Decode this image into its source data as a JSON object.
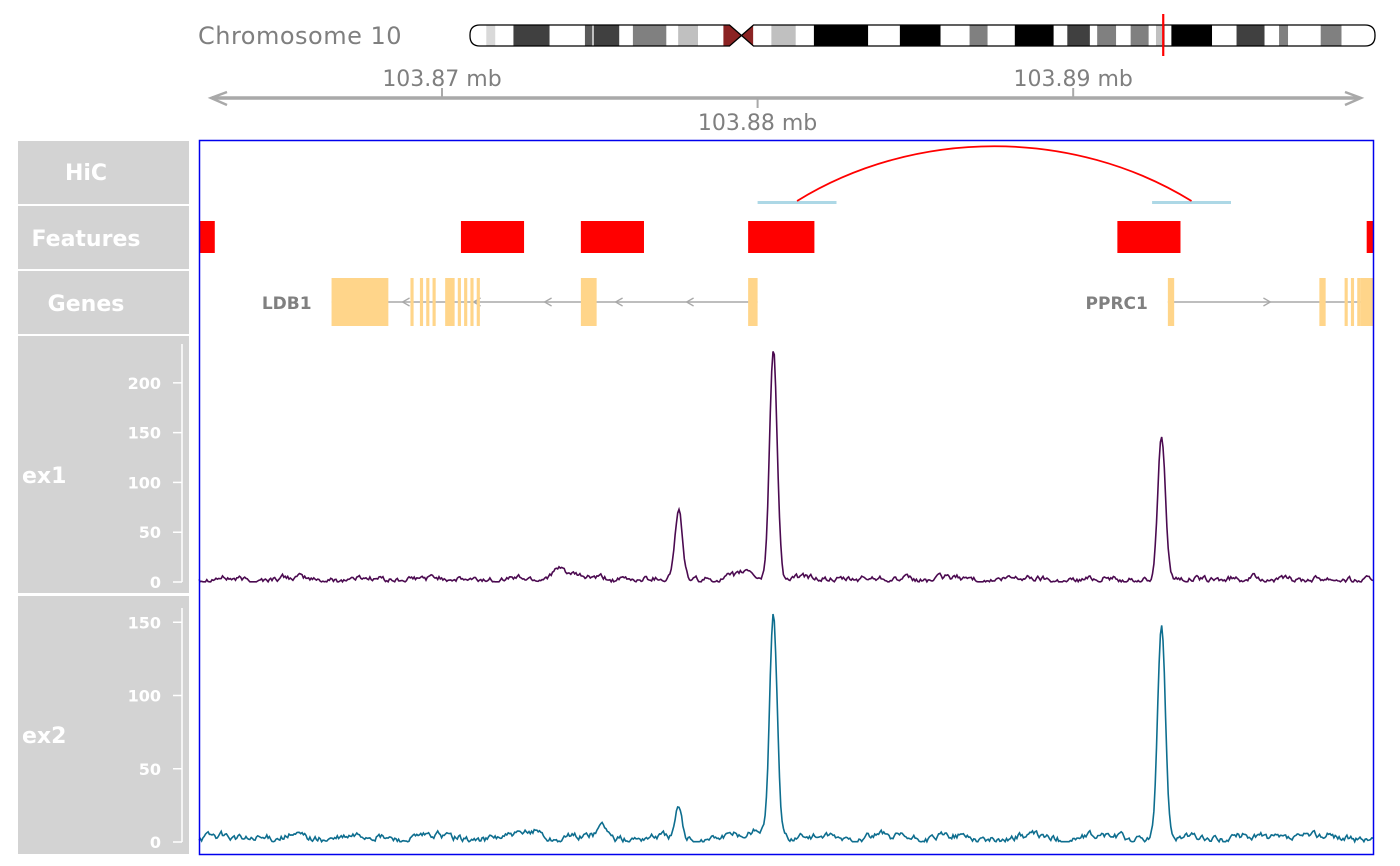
{
  "ideogram": {
    "label": "Chromosome 10",
    "bands": [
      {
        "s": 0.0,
        "e": 0.018,
        "c": "#ffffff"
      },
      {
        "s": 0.018,
        "e": 0.028,
        "c": "#d9d9d9"
      },
      {
        "s": 0.028,
        "e": 0.048,
        "c": "#ffffff"
      },
      {
        "s": 0.048,
        "e": 0.088,
        "c": "#404040"
      },
      {
        "s": 0.088,
        "e": 0.127,
        "c": "#ffffff"
      },
      {
        "s": 0.127,
        "e": 0.135,
        "c": "#5a5a5a"
      },
      {
        "s": 0.135,
        "e": 0.137,
        "c": "#c0c0c0"
      },
      {
        "s": 0.137,
        "e": 0.165,
        "c": "#404040"
      },
      {
        "s": 0.165,
        "e": 0.18,
        "c": "#ffffff"
      },
      {
        "s": 0.18,
        "e": 0.217,
        "c": "#808080"
      },
      {
        "s": 0.217,
        "e": 0.23,
        "c": "#ffffff"
      },
      {
        "s": 0.23,
        "e": 0.252,
        "c": "#c0c0c0"
      },
      {
        "s": 0.252,
        "e": 0.28,
        "c": "#ffffff"
      },
      {
        "s": 0.28,
        "e": 0.3,
        "c": "#8b2323"
      },
      {
        "s": 0.3,
        "e": 0.313,
        "c": "#8b2323"
      },
      {
        "s": 0.313,
        "e": 0.333,
        "c": "#ffffff"
      },
      {
        "s": 0.333,
        "e": 0.36,
        "c": "#c0c0c0"
      },
      {
        "s": 0.36,
        "e": 0.38,
        "c": "#ffffff"
      },
      {
        "s": 0.38,
        "e": 0.44,
        "c": "#000000"
      },
      {
        "s": 0.44,
        "e": 0.475,
        "c": "#ffffff"
      },
      {
        "s": 0.475,
        "e": 0.52,
        "c": "#000000"
      },
      {
        "s": 0.52,
        "e": 0.552,
        "c": "#ffffff"
      },
      {
        "s": 0.552,
        "e": 0.572,
        "c": "#808080"
      },
      {
        "s": 0.572,
        "e": 0.602,
        "c": "#ffffff"
      },
      {
        "s": 0.602,
        "e": 0.645,
        "c": "#000000"
      },
      {
        "s": 0.645,
        "e": 0.66,
        "c": "#ffffff"
      },
      {
        "s": 0.66,
        "e": 0.685,
        "c": "#404040"
      },
      {
        "s": 0.685,
        "e": 0.693,
        "c": "#ffffff"
      },
      {
        "s": 0.693,
        "e": 0.714,
        "c": "#808080"
      },
      {
        "s": 0.714,
        "e": 0.73,
        "c": "#ffffff"
      },
      {
        "s": 0.73,
        "e": 0.75,
        "c": "#808080"
      },
      {
        "s": 0.75,
        "e": 0.758,
        "c": "#ffffff"
      },
      {
        "s": 0.758,
        "e": 0.768,
        "c": "#c0c0c0"
      },
      {
        "s": 0.768,
        "e": 0.775,
        "c": "#ffffff"
      },
      {
        "s": 0.775,
        "e": 0.82,
        "c": "#000000"
      },
      {
        "s": 0.82,
        "e": 0.847,
        "c": "#ffffff"
      },
      {
        "s": 0.847,
        "e": 0.878,
        "c": "#404040"
      },
      {
        "s": 0.878,
        "e": 0.894,
        "c": "#ffffff"
      },
      {
        "s": 0.894,
        "e": 0.904,
        "c": "#808080"
      },
      {
        "s": 0.904,
        "e": 0.94,
        "c": "#ffffff"
      },
      {
        "s": 0.94,
        "e": 0.963,
        "c": "#808080"
      },
      {
        "s": 0.963,
        "e": 1.0,
        "c": "#ffffff"
      }
    ],
    "centromere": 0.3,
    "marker": 0.766,
    "marker_color": "#ff0000"
  },
  "genome_axis": {
    "range_mb": [
      103.8623,
      103.8995
    ],
    "ticks": [
      {
        "mb": 103.87,
        "label": "103.87 mb",
        "pos": "above"
      },
      {
        "mb": 103.88,
        "label": "103.88 mb",
        "pos": "below"
      },
      {
        "mb": 103.89,
        "label": "103.89 mb",
        "pos": "above"
      }
    ],
    "color": "#a9a9a9"
  },
  "tracks": {
    "hic": {
      "title": "HiC"
    },
    "features": {
      "title": "Features"
    },
    "genes": {
      "title": "Genes"
    },
    "ex1": {
      "title": "ex1"
    },
    "ex2": {
      "title": "ex2"
    }
  },
  "chart_data": [
    {
      "type": "arc",
      "track": "HiC",
      "color": "#ff0000",
      "anchor_color": "#add8e6",
      "interactions": [
        {
          "anchor1": [
            103.88,
            103.8825
          ],
          "anchor2": [
            103.8925,
            103.895
          ]
        }
      ]
    },
    {
      "type": "interval",
      "track": "Features",
      "color": "#ff0000",
      "features": [
        [
          103.8623,
          103.8628
        ],
        [
          103.8706,
          103.8726
        ],
        [
          103.8744,
          103.8764
        ],
        [
          103.8797,
          103.8818
        ],
        [
          103.8914,
          103.8934
        ],
        [
          103.8993,
          103.8995
        ]
      ]
    },
    {
      "type": "gene_model",
      "track": "Genes",
      "color": "#ffd58a",
      "line_color": "#a9a9a9",
      "genes": [
        {
          "name": "LDB1",
          "strand": "-",
          "start": 103.8665,
          "end": 103.88,
          "exons": [
            [
              103.8665,
              103.8683
            ],
            [
              103.869,
              103.8691
            ],
            [
              103.8693,
              103.8694
            ],
            [
              103.8695,
              103.8696
            ],
            [
              103.8697,
              103.8698
            ],
            [
              103.8701,
              103.8704
            ],
            [
              103.8705,
              103.8706
            ],
            [
              103.8707,
              103.8708
            ],
            [
              103.8709,
              103.871
            ],
            [
              103.8711,
              103.8712
            ],
            [
              103.8744,
              103.8749
            ],
            [
              103.8797,
              103.88
            ]
          ]
        },
        {
          "name": "PPRC1",
          "strand": "+",
          "start": 103.893,
          "end": 103.8995,
          "exons": [
            [
              103.893,
              103.8932
            ],
            [
              103.8978,
              103.898
            ],
            [
              103.8986,
              103.8987
            ],
            [
              103.8988,
              103.8989
            ],
            [
              103.899,
              103.8991
            ],
            [
              103.8991,
              103.8995
            ]
          ]
        }
      ]
    },
    {
      "type": "line",
      "track": "ex1",
      "color": "#4b0a50",
      "ylim": [
        0,
        235
      ],
      "yticks": [
        0,
        50,
        100,
        150,
        200
      ],
      "baseline": 3,
      "noise": 2.5,
      "peaks": [
        {
          "x": 103.8775,
          "h": 68,
          "w": 0.00012
        },
        {
          "x": 103.8805,
          "h": 232,
          "w": 0.00012
        },
        {
          "x": 103.8928,
          "h": 145,
          "w": 0.00012
        },
        {
          "x": 103.8737,
          "h": 10,
          "w": 0.0003
        },
        {
          "x": 103.8797,
          "h": 8,
          "w": 0.0002
        }
      ]
    },
    {
      "type": "line",
      "track": "ex2",
      "color": "#0e6e8f",
      "ylim": [
        0,
        157
      ],
      "yticks": [
        0,
        50,
        100,
        150
      ],
      "baseline": 3,
      "noise": 2.0,
      "peaks": [
        {
          "x": 103.8775,
          "h": 20,
          "w": 0.0001
        },
        {
          "x": 103.8805,
          "h": 152,
          "w": 0.00012
        },
        {
          "x": 103.8928,
          "h": 145,
          "w": 0.00012
        },
        {
          "x": 103.8751,
          "h": 9,
          "w": 0.00015
        },
        {
          "x": 103.873,
          "h": 6,
          "w": 0.0002
        },
        {
          "x": 103.88,
          "h": 7,
          "w": 0.0002
        }
      ]
    }
  ]
}
